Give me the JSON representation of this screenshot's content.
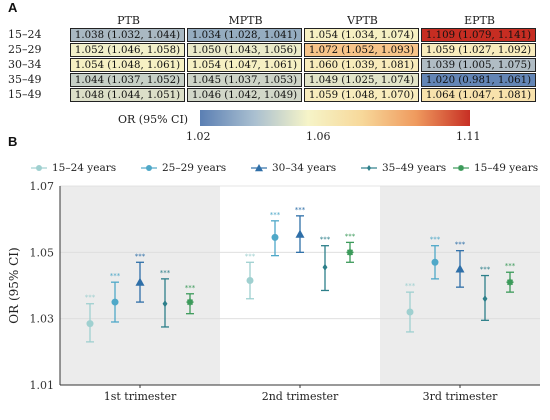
{
  "panels": {
    "a": "A",
    "b": "B"
  },
  "heatmap": {
    "columns": [
      "PTB",
      "MPTB",
      "VPTB",
      "EPTB"
    ],
    "rows": [
      {
        "label": "15–24",
        "cells": [
          {
            "text": "1.038 (1.032, 1.044)",
            "color": "#a9b8c2"
          },
          {
            "text": "1.034 (1.028, 1.041)",
            "color": "#95acc0"
          },
          {
            "text": "1.054 (1.034, 1.074)",
            "color": "#f6f0c3"
          },
          {
            "text": "1.109 (1.079, 1.141)",
            "color": "#c62d22"
          }
        ]
      },
      {
        "label": "25–29",
        "cells": [
          {
            "text": "1.052 (1.046, 1.058)",
            "color": "#f1efc9"
          },
          {
            "text": "1.050 (1.043, 1.056)",
            "color": "#eaeac9"
          },
          {
            "text": "1.072 (1.052, 1.093)",
            "color": "#f7c48a"
          },
          {
            "text": "1.059 (1.027, 1.092)",
            "color": "#f8ecbd"
          }
        ]
      },
      {
        "label": "30–34",
        "cells": [
          {
            "text": "1.054 (1.048, 1.061)",
            "color": "#f6f0c3"
          },
          {
            "text": "1.054 (1.047, 1.061)",
            "color": "#f6f0c3"
          },
          {
            "text": "1.060 (1.039, 1.081)",
            "color": "#f8ebbb"
          },
          {
            "text": "1.039 (1.005, 1.075)",
            "color": "#b0bcc4"
          }
        ]
      },
      {
        "label": "35–49",
        "cells": [
          {
            "text": "1.044 (1.037, 1.052)",
            "color": "#c6cfc6"
          },
          {
            "text": "1.045 (1.037, 1.053)",
            "color": "#cdd3c7"
          },
          {
            "text": "1.049 (1.025, 1.074)",
            "color": "#e2e4c8"
          },
          {
            "text": "1.020 (0.981, 1.061)",
            "color": "#6385b5"
          }
        ]
      },
      {
        "label": "15–49",
        "cells": [
          {
            "text": "1.048 (1.044, 1.051)",
            "color": "#dcdfc8"
          },
          {
            "text": "1.046 (1.042, 1.049)",
            "color": "#d2d7c8"
          },
          {
            "text": "1.059 (1.048, 1.070)",
            "color": "#f8ecbd"
          },
          {
            "text": "1.064 (1.047, 1.081)",
            "color": "#f8e2ac"
          }
        ]
      }
    ]
  },
  "color_legend": {
    "title": "OR (95% CI)",
    "ticks": [
      "1.02",
      "1.06",
      "1.11"
    ],
    "range": [
      1.02,
      1.11
    ],
    "tick_values": [
      1.02,
      1.06,
      1.11
    ]
  },
  "chart_data": {
    "type": "scatter",
    "subtype": "point-range",
    "ylabel": "OR (95% CI)",
    "ylim": [
      1.01,
      1.07
    ],
    "yticks": [
      1.01,
      1.03,
      1.05,
      1.07
    ],
    "ytick_labels": [
      "1.01",
      "1.03",
      "1.05",
      "1.07"
    ],
    "categories": [
      "1st trimester",
      "2nd trimester",
      "3rd trimester"
    ],
    "shaded_categories": [
      0,
      2
    ],
    "significance_label": "***",
    "legend_position": "top",
    "series": [
      {
        "name": "15–24 years",
        "color": "#9fd0d0",
        "marker": "circle",
        "values": [
          1.0285,
          1.0415,
          1.032
        ],
        "lower": [
          1.023,
          1.036,
          1.026
        ],
        "upper": [
          1.0345,
          1.047,
          1.038
        ]
      },
      {
        "name": "25–29 years",
        "color": "#4fa8c8",
        "marker": "circle",
        "values": [
          1.035,
          1.0545,
          1.047
        ],
        "lower": [
          1.029,
          1.049,
          1.042
        ],
        "upper": [
          1.041,
          1.0595,
          1.052
        ]
      },
      {
        "name": "30–34 years",
        "color": "#2f6fa8",
        "marker": "triangle",
        "values": [
          1.041,
          1.0555,
          1.045
        ],
        "lower": [
          1.035,
          1.05,
          1.0395
        ],
        "upper": [
          1.047,
          1.061,
          1.0505
        ]
      },
      {
        "name": "35–49 years",
        "color": "#2d7f8a",
        "marker": "diamond",
        "values": [
          1.0345,
          1.0455,
          1.036
        ],
        "lower": [
          1.0275,
          1.0385,
          1.0295
        ],
        "upper": [
          1.042,
          1.052,
          1.043
        ]
      },
      {
        "name": "15–49 years",
        "color": "#3c9a5a",
        "marker": "asterisk",
        "values": [
          1.035,
          1.05,
          1.041
        ],
        "lower": [
          1.0315,
          1.047,
          1.038
        ],
        "upper": [
          1.0375,
          1.053,
          1.044
        ]
      }
    ]
  }
}
